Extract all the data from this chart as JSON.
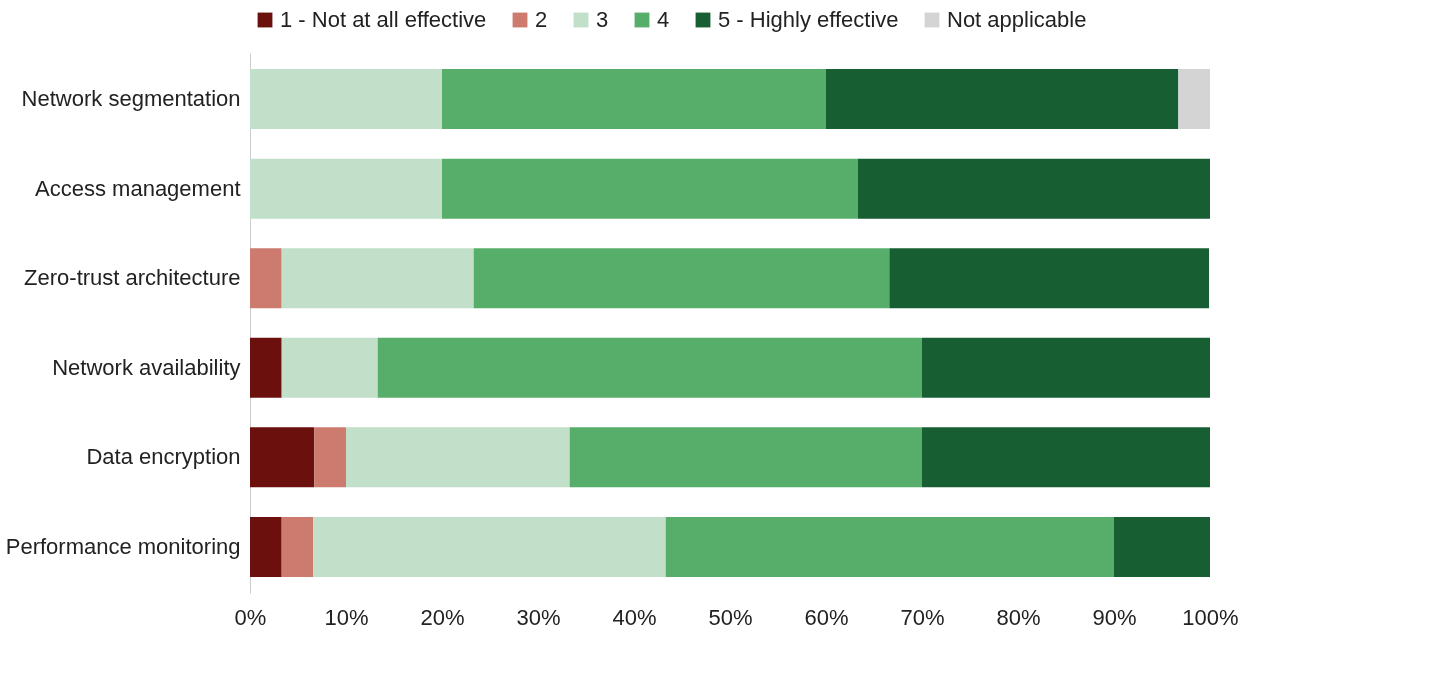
{
  "chart_data": {
    "type": "bar",
    "orientation": "horizontal",
    "stacked": true,
    "categories": [
      "Network segmentation",
      "Access management",
      "Zero-trust architecture",
      "Network availability",
      "Data encryption",
      "Performance monitoring"
    ],
    "series": [
      {
        "name": "1 - Not at all effective",
        "color": "#6b100d",
        "values": [
          null,
          null,
          null,
          3.3,
          6.7,
          3.3
        ]
      },
      {
        "name": "2",
        "color": "#cd7b6e",
        "values": [
          null,
          null,
          3.3,
          null,
          3.3,
          3.3
        ]
      },
      {
        "name": "3",
        "color": "#c1dfc9",
        "values": [
          20,
          20,
          20,
          10,
          23.3,
          36.7
        ]
      },
      {
        "name": "4",
        "color": "#57ae6a",
        "values": [
          40,
          43.3,
          43.3,
          56.7,
          36.7,
          46.7
        ]
      },
      {
        "name": "5 - Highly effective",
        "color": "#175f33",
        "values": [
          36.7,
          36.7,
          33.3,
          30,
          30,
          10
        ]
      },
      {
        "name": "Not applicable",
        "color": "#d4d4d4",
        "values": [
          3.3,
          null,
          null,
          null,
          null,
          null
        ]
      }
    ],
    "xlim": [
      0,
      100
    ],
    "xticks": [
      {
        "value": 0,
        "label": "0%"
      },
      {
        "value": 10,
        "label": "10%"
      },
      {
        "value": 20,
        "label": "20%"
      },
      {
        "value": 30,
        "label": "30%"
      },
      {
        "value": 40,
        "label": "40%"
      },
      {
        "value": 50,
        "label": "50%"
      },
      {
        "value": 60,
        "label": "60%"
      },
      {
        "value": 70,
        "label": "70%"
      },
      {
        "value": 80,
        "label": "80%"
      },
      {
        "value": 90,
        "label": "90%"
      },
      {
        "value": 100,
        "label": "100%"
      }
    ],
    "legend": "top",
    "grid": false
  }
}
